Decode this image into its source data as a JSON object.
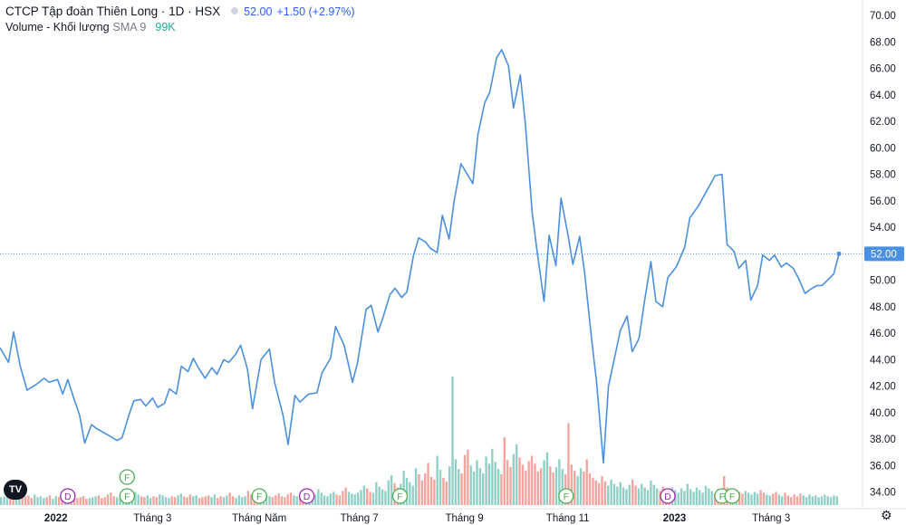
{
  "header": {
    "symbol": "CTCP Tập đoàn Thiên Long · 1D · HSX",
    "last": "52.00",
    "change": "+1.50 (+2.97%)",
    "volume_label": "Volume - Khối lượng",
    "sma_label": "SMA 9",
    "volume_value": "99K"
  },
  "price_tag": "52.00",
  "logo": "TV",
  "settings_icon": "gear-icon",
  "colors": {
    "line": "#4a90e2",
    "vol_up": "#8fd0c6",
    "vol_down": "#f4a39d",
    "dividend": "#9c27b0",
    "financial": "#4caf50"
  },
  "chart_data": {
    "type": "line",
    "ylim": [
      32.5,
      70.5
    ],
    "y_ticks": [
      "34.00",
      "36.00",
      "38.00",
      "40.00",
      "42.00",
      "44.00",
      "46.00",
      "48.00",
      "50.00",
      "52.00",
      "54.00",
      "56.00",
      "58.00",
      "60.00",
      "62.00",
      "64.00",
      "66.00",
      "68.00",
      "70.00"
    ],
    "x_labels": [
      {
        "label": "2022",
        "date": "2022-01-03",
        "bold": true
      },
      {
        "label": "Tháng 3",
        "date": "2022-03-01",
        "bold": false
      },
      {
        "label": "Tháng Năm",
        "date": "2022-05-03",
        "bold": false
      },
      {
        "label": "Tháng 7",
        "date": "2022-07-01",
        "bold": false
      },
      {
        "label": "Tháng 9",
        "date": "2022-09-01",
        "bold": false
      },
      {
        "label": "Tháng 11",
        "date": "2022-11-01",
        "bold": false
      },
      {
        "label": "2023",
        "date": "2023-01-03",
        "bold": true
      },
      {
        "label": "Tháng 3",
        "date": "2023-03-01",
        "bold": false
      }
    ],
    "price_series": [
      [
        "2021-12-01",
        44.9
      ],
      [
        "2021-12-06",
        43.8
      ],
      [
        "2021-12-09",
        46.1
      ],
      [
        "2021-12-13",
        43.5
      ],
      [
        "2021-12-17",
        41.7
      ],
      [
        "2021-12-22",
        42.1
      ],
      [
        "2021-12-27",
        42.6
      ],
      [
        "2021-12-30",
        42.3
      ],
      [
        "2022-01-04",
        42.5
      ],
      [
        "2022-01-07",
        41.4
      ],
      [
        "2022-01-10",
        42.5
      ],
      [
        "2022-01-13",
        41.3
      ],
      [
        "2022-01-17",
        39.8
      ],
      [
        "2022-01-20",
        37.7
      ],
      [
        "2022-01-24",
        39.1
      ],
      [
        "2022-01-27",
        38.8
      ],
      [
        "2022-02-03",
        38.3
      ],
      [
        "2022-02-08",
        37.9
      ],
      [
        "2022-02-11",
        38.1
      ],
      [
        "2022-02-15",
        39.8
      ],
      [
        "2022-02-18",
        40.9
      ],
      [
        "2022-02-22",
        41.0
      ],
      [
        "2022-02-25",
        40.5
      ],
      [
        "2022-03-01",
        41.1
      ],
      [
        "2022-03-04",
        40.4
      ],
      [
        "2022-03-08",
        40.7
      ],
      [
        "2022-03-11",
        41.8
      ],
      [
        "2022-03-15",
        41.4
      ],
      [
        "2022-03-18",
        43.5
      ],
      [
        "2022-03-22",
        43.1
      ],
      [
        "2022-03-25",
        44.1
      ],
      [
        "2022-03-29",
        43.2
      ],
      [
        "2022-04-01",
        42.6
      ],
      [
        "2022-04-05",
        43.4
      ],
      [
        "2022-04-08",
        42.9
      ],
      [
        "2022-04-12",
        44.0
      ],
      [
        "2022-04-15",
        43.8
      ],
      [
        "2022-04-19",
        44.4
      ],
      [
        "2022-04-22",
        45.1
      ],
      [
        "2022-04-26",
        43.3
      ],
      [
        "2022-04-29",
        40.3
      ],
      [
        "2022-05-04",
        44.0
      ],
      [
        "2022-05-09",
        44.8
      ],
      [
        "2022-05-12",
        42.3
      ],
      [
        "2022-05-17",
        39.8
      ],
      [
        "2022-05-20",
        37.6
      ],
      [
        "2022-05-24",
        41.3
      ],
      [
        "2022-05-27",
        40.8
      ],
      [
        "2022-06-01",
        41.4
      ],
      [
        "2022-06-06",
        41.5
      ],
      [
        "2022-06-09",
        43.0
      ],
      [
        "2022-06-14",
        44.1
      ],
      [
        "2022-06-17",
        46.5
      ],
      [
        "2022-06-22",
        45.1
      ],
      [
        "2022-06-27",
        42.3
      ],
      [
        "2022-06-30",
        43.8
      ],
      [
        "2022-07-05",
        47.8
      ],
      [
        "2022-07-08",
        48.1
      ],
      [
        "2022-07-12",
        46.1
      ],
      [
        "2022-07-15",
        47.2
      ],
      [
        "2022-07-19",
        48.9
      ],
      [
        "2022-07-22",
        49.4
      ],
      [
        "2022-07-26",
        48.7
      ],
      [
        "2022-07-29",
        49.1
      ],
      [
        "2022-08-02",
        51.9
      ],
      [
        "2022-08-05",
        53.2
      ],
      [
        "2022-08-09",
        52.9
      ],
      [
        "2022-08-12",
        52.4
      ],
      [
        "2022-08-16",
        52.1
      ],
      [
        "2022-08-19",
        54.9
      ],
      [
        "2022-08-23",
        53.1
      ],
      [
        "2022-08-26",
        56.0
      ],
      [
        "2022-08-30",
        58.8
      ],
      [
        "2022-09-06",
        57.3
      ],
      [
        "2022-09-09",
        61.0
      ],
      [
        "2022-09-13",
        63.4
      ],
      [
        "2022-09-16",
        64.2
      ],
      [
        "2022-09-20",
        66.8
      ],
      [
        "2022-09-23",
        67.4
      ],
      [
        "2022-09-27",
        66.2
      ],
      [
        "2022-09-30",
        63.0
      ],
      [
        "2022-10-04",
        65.5
      ],
      [
        "2022-10-07",
        61.8
      ],
      [
        "2022-10-11",
        55.1
      ],
      [
        "2022-10-14",
        52.1
      ],
      [
        "2022-10-18",
        48.4
      ],
      [
        "2022-10-21",
        53.4
      ],
      [
        "2022-10-25",
        51.1
      ],
      [
        "2022-10-28",
        56.2
      ],
      [
        "2022-11-01",
        53.5
      ],
      [
        "2022-11-04",
        51.2
      ],
      [
        "2022-11-08",
        53.3
      ],
      [
        "2022-11-11",
        50.5
      ],
      [
        "2022-11-15",
        45.6
      ],
      [
        "2022-11-18",
        42.3
      ],
      [
        "2022-11-22",
        36.2
      ],
      [
        "2022-11-25",
        42.0
      ],
      [
        "2022-11-29",
        44.4
      ],
      [
        "2022-12-02",
        46.2
      ],
      [
        "2022-12-06",
        47.3
      ],
      [
        "2022-12-09",
        44.6
      ],
      [
        "2022-12-13",
        45.6
      ],
      [
        "2022-12-16",
        48.2
      ],
      [
        "2022-12-20",
        51.4
      ],
      [
        "2022-12-23",
        48.4
      ],
      [
        "2022-12-27",
        48.0
      ],
      [
        "2022-12-30",
        50.2
      ],
      [
        "2023-01-04",
        51.0
      ],
      [
        "2023-01-09",
        52.5
      ],
      [
        "2023-01-12",
        54.7
      ],
      [
        "2023-01-17",
        55.6
      ],
      [
        "2023-01-27",
        57.9
      ],
      [
        "2023-01-31",
        58.0
      ],
      [
        "2023-02-03",
        52.7
      ],
      [
        "2023-02-07",
        52.2
      ],
      [
        "2023-02-10",
        50.9
      ],
      [
        "2023-02-14",
        51.5
      ],
      [
        "2023-02-17",
        48.5
      ],
      [
        "2023-02-21",
        49.6
      ],
      [
        "2023-02-24",
        51.9
      ],
      [
        "2023-02-28",
        51.5
      ],
      [
        "2023-03-03",
        51.9
      ],
      [
        "2023-03-07",
        51.0
      ],
      [
        "2023-03-10",
        51.3
      ],
      [
        "2023-03-14",
        50.9
      ],
      [
        "2023-03-17",
        50.2
      ],
      [
        "2023-03-21",
        49.0
      ],
      [
        "2023-03-24",
        49.3
      ],
      [
        "2023-03-28",
        49.6
      ],
      [
        "2023-03-31",
        49.6
      ],
      [
        "2023-04-04",
        50.1
      ],
      [
        "2023-04-07",
        50.5
      ],
      [
        "2023-04-10",
        52.0
      ]
    ],
    "volume_series": {
      "start": "2021-12-01",
      "step_trading_days": 1,
      "values": [
        0.9,
        1.0,
        1.2,
        0.8,
        1.1,
        1.3,
        0.7,
        0.9,
        1.0,
        1.1,
        0.8,
        1.2,
        0.9,
        1.0,
        0.8,
        0.9,
        1.1,
        0.7,
        1.0,
        0.9,
        0.8,
        1.3,
        1.0,
        0.9,
        1.1,
        0.8,
        0.9,
        1.0,
        0.7,
        0.8,
        0.9,
        1.0,
        1.1,
        0.8,
        0.9,
        1.2,
        1.4,
        1.0,
        0.9,
        0.8,
        1.1,
        1.0,
        0.9,
        1.3,
        1.5,
        1.2,
        1.0,
        0.9,
        1.1,
        0.8,
        1.0,
        0.9,
        1.2,
        1.1,
        0.9,
        0.8,
        1.0,
        0.9,
        1.1,
        1.3,
        1.0,
        0.9,
        1.2,
        1.0,
        1.1,
        0.8,
        0.9,
        1.0,
        1.1,
        0.9,
        1.2,
        0.8,
        1.0,
        0.9,
        1.1,
        1.4,
        1.0,
        0.8,
        1.1,
        0.9,
        1.0,
        1.6,
        1.2,
        0.9,
        1.0,
        1.1,
        0.8,
        1.2,
        1.0,
        0.9,
        1.1,
        1.3,
        1.0,
        0.9,
        1.2,
        1.4,
        1.1,
        1.0,
        0.9,
        1.2,
        1.3,
        1.1,
        1.0,
        1.2,
        1.8,
        1.4,
        1.1,
        1.0,
        1.3,
        1.5,
        1.2,
        1.1,
        1.6,
        2.0,
        1.5,
        1.3,
        1.2,
        1.4,
        1.7,
        2.2,
        1.9,
        1.5,
        1.4,
        2.6,
        2.1,
        1.8,
        1.6,
        2.8,
        3.4,
        2.5,
        2.0,
        2.4,
        3.9,
        3.1,
        2.6,
        2.2,
        4.2,
        3.5,
        2.8,
        3.6,
        4.8,
        3.2,
        2.9,
        5.6,
        4.0,
        3.1,
        2.7,
        4.4,
        14.6,
        5.2,
        4.1,
        3.6,
        5.7,
        6.3,
        4.5,
        3.8,
        5.1,
        4.2,
        3.6,
        5.5,
        4.7,
        6.4,
        4.9,
        4.1,
        3.5,
        7.7,
        5.1,
        4.3,
        5.8,
        6.9,
        5.4,
        4.6,
        3.9,
        5.0,
        5.6,
        4.7,
        3.8,
        4.2,
        5.1,
        6.0,
        4.4,
        3.7,
        4.3,
        5.2,
        4.1,
        3.5,
        9.3,
        4.6,
        3.9,
        3.3,
        4.2,
        3.8,
        5.2,
        3.6,
        3.1,
        2.8,
        2.5,
        3.3,
        2.7,
        2.2,
        2.9,
        2.4,
        2.1,
        2.6,
        2.0,
        1.8,
        2.3,
        2.9,
        2.2,
        1.9,
        2.4,
        2.0,
        1.7,
        2.8,
        2.3,
        1.9,
        1.6,
        2.1,
        1.8,
        1.5,
        2.0,
        1.7,
        1.4,
        1.9,
        1.6,
        2.4,
        1.8,
        1.5,
        2.0,
        1.7,
        1.4,
        2.2,
        1.9,
        1.6,
        1.3,
        1.8,
        1.5,
        3.3,
        2.0,
        1.6,
        1.4,
        1.7,
        1.5,
        1.3,
        1.6,
        1.4,
        1.2,
        1.5,
        1.3,
        1.7,
        1.4,
        1.2,
        1.1,
        1.3,
        1.5,
        1.2,
        1.0,
        1.4,
        1.1,
        0.9,
        1.2,
        1.0,
        1.3,
        1.1,
        0.9,
        1.2,
        1.0,
        1.1,
        0.9,
        1.0,
        1.2,
        1.0,
        0.9,
        1.1,
        1.0
      ]
    },
    "events": [
      {
        "type": "D",
        "date": "2022-01-10",
        "row": 0
      },
      {
        "type": "F",
        "date": "2022-02-14",
        "row": 0
      },
      {
        "type": "F",
        "date": "2022-02-14",
        "row": 1
      },
      {
        "type": "F",
        "date": "2022-05-03",
        "row": 0
      },
      {
        "type": "D",
        "date": "2022-05-31",
        "row": 0
      },
      {
        "type": "F",
        "date": "2022-07-25",
        "row": 0
      },
      {
        "type": "F",
        "date": "2022-10-31",
        "row": 0
      },
      {
        "type": "D",
        "date": "2022-12-30",
        "row": 0
      },
      {
        "type": "F",
        "date": "2023-01-31",
        "row": 0
      },
      {
        "type": "F",
        "date": "2023-02-06",
        "row": 0
      }
    ]
  }
}
